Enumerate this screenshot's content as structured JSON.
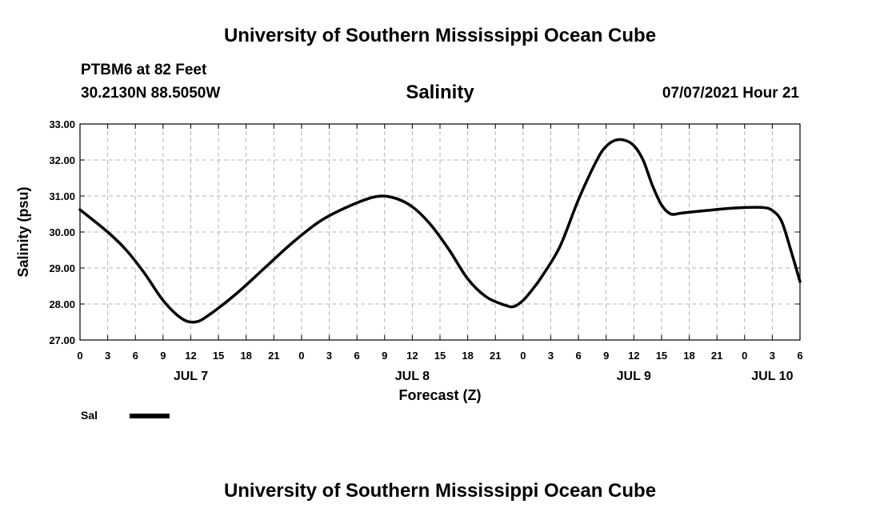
{
  "header": {
    "title": "University of Southern Mississippi Ocean Cube",
    "station": "PTBM6 at 82 Feet",
    "coordinates": "30.2130N  88.5050W",
    "variable": "Salinity",
    "datetime": "07/07/2021 Hour 21"
  },
  "footer": {
    "title": "University of Southern Mississippi Ocean Cube"
  },
  "chart_data": {
    "type": "line",
    "title": "Salinity",
    "xlabel": "Forecast (Z)",
    "ylabel": "Salinity (psu)",
    "ylim": [
      27.0,
      33.0
    ],
    "yticks": [
      "27.00",
      "28.00",
      "29.00",
      "30.00",
      "31.00",
      "32.00",
      "33.00"
    ],
    "xlim_hours": [
      0,
      78
    ],
    "xtick_labels": [
      "0",
      "3",
      "6",
      "9",
      "12",
      "15",
      "18",
      "21",
      "0",
      "3",
      "6",
      "9",
      "12",
      "15",
      "18",
      "21",
      "0",
      "3",
      "6",
      "9",
      "12",
      "15",
      "18",
      "21",
      "0",
      "3",
      "6"
    ],
    "day_labels": [
      {
        "label": "JUL 7",
        "hour": 12
      },
      {
        "label": "JUL 8",
        "hour": 36
      },
      {
        "label": "JUL 9",
        "hour": 60
      },
      {
        "label": "JUL 10",
        "hour": 75
      }
    ],
    "grid": true,
    "legend": {
      "position": "bottom-left",
      "label": "Sal"
    },
    "series": [
      {
        "name": "Sal",
        "color": "#000000",
        "x": [
          0,
          3,
          5,
          7,
          9,
          11,
          12.5,
          14,
          17,
          20,
          23,
          26,
          29,
          32,
          34,
          36,
          38,
          40,
          42,
          44,
          46,
          47,
          48,
          49,
          50,
          52,
          54,
          56,
          57,
          58,
          59,
          60,
          61,
          62,
          63,
          64,
          65,
          66,
          68,
          70,
          72,
          74,
          75,
          76,
          77,
          78
        ],
        "values": [
          30.62,
          30.0,
          29.5,
          28.85,
          28.1,
          27.6,
          27.5,
          27.7,
          28.3,
          29.0,
          29.7,
          30.3,
          30.7,
          30.98,
          30.95,
          30.7,
          30.2,
          29.5,
          28.7,
          28.2,
          27.97,
          27.93,
          28.1,
          28.4,
          28.75,
          29.6,
          30.9,
          32.0,
          32.38,
          32.55,
          32.55,
          32.4,
          32.0,
          31.3,
          30.75,
          30.5,
          30.52,
          30.55,
          30.6,
          30.65,
          30.68,
          30.68,
          30.6,
          30.3,
          29.5,
          28.62
        ]
      }
    ]
  }
}
